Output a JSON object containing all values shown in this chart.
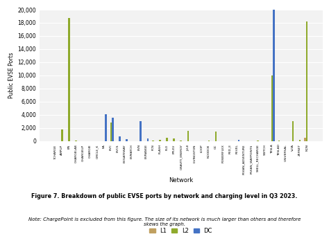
{
  "networks": [
    "7CHARGE",
    "AMPUP",
    "BN",
    "CHARGELAB",
    "CHARGEUP",
    "CHARGIE",
    "CIRCLE_K",
    "EA",
    "EVC",
    "EVCS",
    "EVGATEWAY",
    "EVMATCH",
    "EVN",
    "EVRANGE",
    "FCN",
    "FLASH",
    "FLO",
    "FPLEV",
    "GRAVITI_ENERGY",
    "JULE",
    "LIVINGSTON",
    "LOOP",
    "NOODOE",
    "OC",
    "POWERFLEX",
    "RED_E",
    "REVEL",
    "RIVIAN_ADVENTURE",
    "RIVIAN_WAYPOINTS",
    "SHELL_RECHARGE",
    "SWTCH",
    "TESLA",
    "TESLAD",
    "UNIVERSAL",
    "VLTA",
    "ZEFNET",
    "NON"
  ],
  "L1": [
    0,
    0,
    0,
    0,
    0,
    0,
    0,
    0,
    0,
    0,
    0,
    0,
    0,
    0,
    0,
    0,
    0,
    0,
    0,
    0,
    0,
    0,
    0,
    0,
    0,
    0,
    0,
    0,
    0,
    0,
    0,
    0,
    0,
    0,
    0,
    0,
    500
  ],
  "L2": [
    0,
    1800,
    18700,
    100,
    0,
    0,
    0,
    0,
    2800,
    0,
    0,
    0,
    0,
    0,
    100,
    200,
    500,
    400,
    100,
    1500,
    0,
    0,
    100,
    1400,
    0,
    0,
    0,
    0,
    0,
    100,
    0,
    10000,
    100,
    0,
    3000,
    200,
    18200
  ],
  "DC": [
    0,
    0,
    0,
    0,
    0,
    0,
    0,
    4100,
    3500,
    700,
    300,
    0,
    3000,
    400,
    0,
    0,
    0,
    0,
    0,
    0,
    0,
    0,
    0,
    0,
    0,
    0,
    200,
    0,
    0,
    0,
    0,
    20000,
    0,
    0,
    0,
    0,
    0
  ],
  "L1_color": "#c0a060",
  "L2_color": "#8faa2c",
  "DC_color": "#4472c4",
  "ylabel": "Public EVSE Ports",
  "xlabel": "Network",
  "ylim": [
    0,
    20000
  ],
  "yticks": [
    0,
    2000,
    4000,
    6000,
    8000,
    10000,
    12000,
    14000,
    16000,
    18000,
    20000
  ],
  "title": "Figure 7. Breakdown of public EVSE ports by network and charging level in Q3 2023.",
  "note": "Note: ChargePoint is excluded from this figure. The size of its network is much larger than others and therefore\nskews the graph.",
  "bg_color": "#f2f2f2"
}
